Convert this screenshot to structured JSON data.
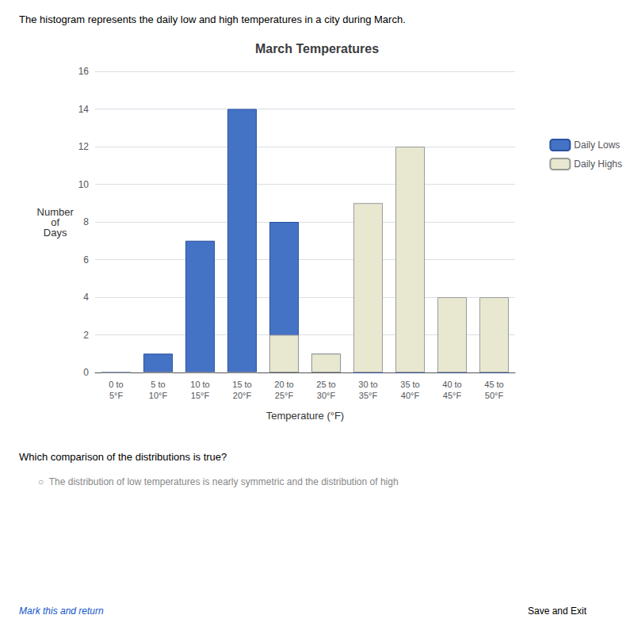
{
  "chart_data": {
    "type": "bar",
    "title": "March Temperatures",
    "xlabel": "Temperature (°F)",
    "ylabel": "Number\nof\nDays",
    "categories": [
      "0 to\n5°F",
      "5 to\n10°F",
      "10 to\n15°F",
      "15 to\n20°F",
      "20 to\n25°F",
      "25 to\n30°F",
      "30 to\n35°F",
      "35 to\n40°F",
      "40 to\n45°F",
      "45 to\n50°F"
    ],
    "series": [
      {
        "name": "Daily Lows",
        "color": "#4472C4",
        "values": [
          0,
          1,
          7,
          14,
          8,
          1,
          0,
          0,
          0,
          0
        ]
      },
      {
        "name": "Daily Highs",
        "color": "#E8E8D0",
        "values": [
          0,
          0,
          0,
          0,
          2,
          1,
          9,
          12,
          4,
          4
        ]
      }
    ],
    "ylim": [
      0,
      16
    ],
    "yticks": [
      0,
      2,
      4,
      6,
      8,
      10,
      12,
      14,
      16
    ],
    "grid": true,
    "legend": "right",
    "annotations": [
      "The histogram represents the daily low and high temperatures in a city during March.",
      "Which comparison of the distributions is true?",
      "○  The distribution of low temperatures is nearly symmetric and the distribution of high",
      "Mark this and return",
      "Save and Exit"
    ]
  }
}
